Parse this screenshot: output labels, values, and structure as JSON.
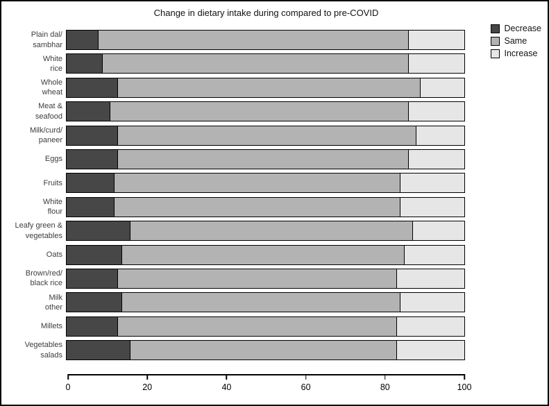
{
  "window": {
    "background": "#ffffff",
    "frame_color": "#000000"
  },
  "chart_data": {
    "type": "bar",
    "orientation": "horizontal",
    "stacked": true,
    "title": "Change in dietary intake during compared to pre-COVID",
    "categories": [
      "Plain dal/\nsambhar",
      "White\nrice",
      "Whole\nwheat",
      "Meat &\nseafood",
      "Milk/curd/\npaneer",
      "Eggs",
      "Fruits",
      "White\nflour",
      "Leafy green &\nvegetables",
      "Oats",
      "Brown/red/\nblack rice",
      "Milk\nother",
      "Millets",
      "Vegetables\nsalads"
    ],
    "series": [
      {
        "name": "Decrease",
        "color": "#474747",
        "values": [
          8,
          9,
          13,
          11,
          13,
          13,
          12,
          12,
          16,
          14,
          13,
          14,
          13,
          16
        ]
      },
      {
        "name": "Same",
        "color": "#b3b3b3",
        "values": [
          78,
          77,
          76,
          75,
          75,
          73,
          72,
          72,
          71,
          71,
          70,
          70,
          70,
          67
        ]
      },
      {
        "name": "Increase",
        "color": "#e6e6e6",
        "values": [
          14,
          14,
          11,
          14,
          12,
          14,
          16,
          16,
          13,
          15,
          17,
          16,
          17,
          17
        ]
      }
    ],
    "legend": [
      "Decrease",
      "Same",
      "Increase"
    ],
    "legend_position": "top-right",
    "xlabel": "",
    "ylabel": "",
    "xlim": [
      0,
      100
    ],
    "xticks": [
      0,
      20,
      40,
      60,
      80,
      100
    ],
    "grid": false,
    "bar_border_color": "#000000"
  }
}
